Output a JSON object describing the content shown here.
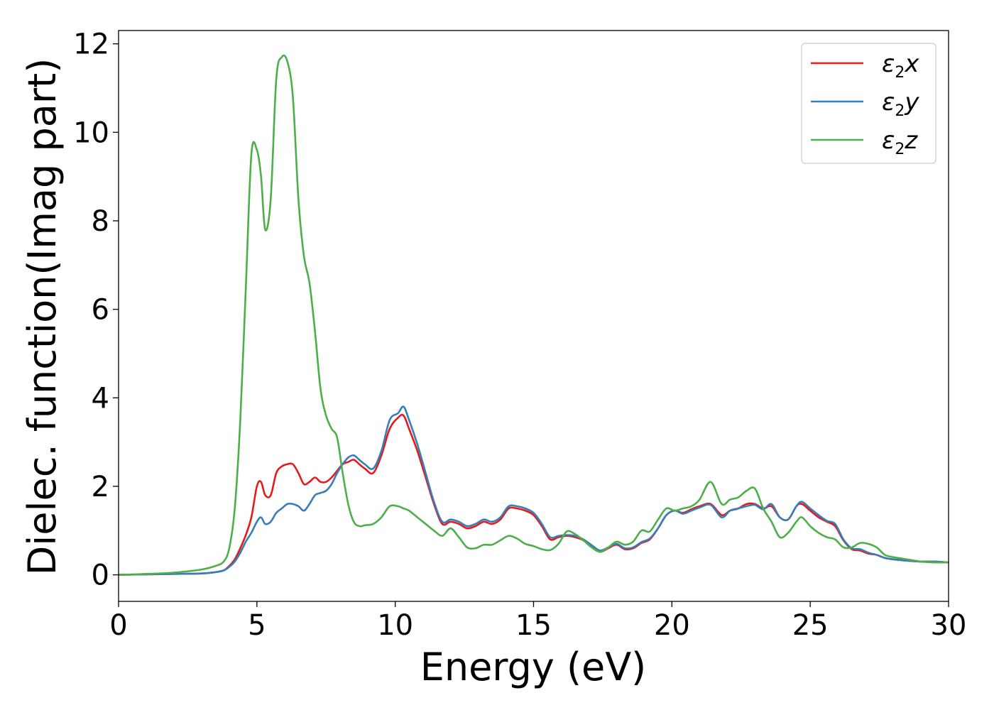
{
  "chart_data": {
    "type": "line",
    "xlabel": "Energy (eV)",
    "ylabel": "Dielec. function(Imag part)",
    "xlim": [
      0,
      30
    ],
    "ylim": [
      -0.6,
      12.3
    ],
    "xticks": [
      0,
      5,
      10,
      15,
      20,
      25,
      30
    ],
    "yticks": [
      0,
      2,
      4,
      6,
      8,
      10,
      12
    ],
    "grid": false,
    "legend_position": "top-right",
    "x": [
      0,
      1,
      2,
      3,
      3.5,
      3.8,
      4.0,
      4.2,
      4.4,
      4.6,
      4.8,
      5.0,
      5.15,
      5.3,
      5.5,
      5.7,
      5.9,
      6.1,
      6.3,
      6.5,
      6.7,
      6.9,
      7.1,
      7.3,
      7.5,
      7.7,
      7.9,
      8.1,
      8.3,
      8.5,
      8.7,
      8.9,
      9.2,
      9.5,
      9.8,
      10.1,
      10.3,
      10.5,
      10.8,
      11.1,
      11.4,
      11.7,
      12.0,
      12.3,
      12.6,
      12.9,
      13.2,
      13.5,
      13.8,
      14.1,
      14.4,
      14.7,
      15.0,
      15.3,
      15.6,
      15.9,
      16.2,
      16.5,
      16.8,
      17.1,
      17.4,
      17.7,
      18.0,
      18.3,
      18.6,
      18.9,
      19.2,
      19.5,
      19.8,
      20.1,
      20.4,
      20.7,
      21.0,
      21.4,
      21.8,
      22.1,
      22.4,
      22.7,
      23.0,
      23.3,
      23.6,
      23.9,
      24.2,
      24.5,
      24.7,
      25.0,
      25.3,
      25.6,
      25.9,
      26.2,
      26.5,
      26.8,
      27.1,
      27.4,
      27.7,
      28.0,
      28.5,
      29.0,
      29.5,
      30.0
    ],
    "series": [
      {
        "name": "ε2x",
        "sub": "2",
        "var": "x",
        "color": "#e41a1c",
        "values": [
          0,
          0.01,
          0.02,
          0.03,
          0.06,
          0.1,
          0.2,
          0.35,
          0.6,
          0.9,
          1.3,
          2.0,
          2.1,
          1.8,
          1.8,
          2.3,
          2.45,
          2.5,
          2.5,
          2.3,
          2.05,
          2.1,
          2.2,
          2.1,
          2.1,
          2.2,
          2.35,
          2.5,
          2.55,
          2.6,
          2.5,
          2.4,
          2.3,
          2.7,
          3.3,
          3.55,
          3.6,
          3.3,
          2.8,
          2.2,
          1.6,
          1.15,
          1.2,
          1.15,
          1.05,
          1.1,
          1.2,
          1.15,
          1.25,
          1.5,
          1.5,
          1.45,
          1.35,
          1.1,
          0.8,
          0.85,
          0.88,
          0.85,
          0.78,
          0.65,
          0.52,
          0.6,
          0.68,
          0.58,
          0.6,
          0.72,
          0.8,
          1.05,
          1.35,
          1.45,
          1.4,
          1.48,
          1.55,
          1.6,
          1.35,
          1.45,
          1.5,
          1.6,
          1.6,
          1.5,
          1.55,
          1.3,
          1.25,
          1.55,
          1.6,
          1.45,
          1.3,
          1.2,
          1.1,
          0.78,
          0.58,
          0.55,
          0.48,
          0.45,
          0.38,
          0.35,
          0.32,
          0.3,
          0.3,
          0.28
        ]
      },
      {
        "name": "ε2y",
        "sub": "2",
        "var": "y",
        "color": "#377eb8",
        "values": [
          0,
          0.01,
          0.02,
          0.03,
          0.06,
          0.1,
          0.18,
          0.3,
          0.5,
          0.75,
          0.95,
          1.2,
          1.3,
          1.15,
          1.2,
          1.4,
          1.5,
          1.6,
          1.6,
          1.55,
          1.45,
          1.6,
          1.8,
          1.85,
          1.9,
          2.05,
          2.3,
          2.5,
          2.65,
          2.7,
          2.6,
          2.5,
          2.4,
          2.8,
          3.5,
          3.65,
          3.8,
          3.5,
          2.95,
          2.3,
          1.65,
          1.2,
          1.25,
          1.2,
          1.1,
          1.15,
          1.25,
          1.2,
          1.3,
          1.55,
          1.55,
          1.5,
          1.4,
          1.15,
          0.85,
          0.88,
          0.9,
          0.88,
          0.8,
          0.67,
          0.55,
          0.62,
          0.7,
          0.6,
          0.62,
          0.74,
          0.82,
          1.05,
          1.35,
          1.45,
          1.38,
          1.45,
          1.52,
          1.58,
          1.3,
          1.45,
          1.5,
          1.55,
          1.58,
          1.48,
          1.6,
          1.3,
          1.25,
          1.55,
          1.65,
          1.5,
          1.35,
          1.22,
          1.15,
          0.8,
          0.6,
          0.58,
          0.5,
          0.45,
          0.38,
          0.35,
          0.32,
          0.3,
          0.3,
          0.28
        ]
      },
      {
        "name": "ε2z",
        "sub": "2",
        "var": "z",
        "color": "#4daf4a",
        "values": [
          0,
          0.02,
          0.05,
          0.12,
          0.2,
          0.3,
          0.6,
          1.5,
          3.5,
          6.5,
          9.5,
          9.6,
          9.0,
          7.8,
          8.5,
          11.2,
          11.7,
          11.6,
          10.8,
          8.5,
          7.2,
          6.6,
          5.5,
          4.2,
          3.6,
          3.3,
          3.1,
          2.3,
          1.6,
          1.2,
          1.1,
          1.12,
          1.15,
          1.3,
          1.55,
          1.55,
          1.5,
          1.45,
          1.3,
          1.15,
          1.0,
          0.88,
          1.05,
          0.85,
          0.62,
          0.6,
          0.68,
          0.68,
          0.78,
          0.88,
          0.82,
          0.7,
          0.65,
          0.58,
          0.56,
          0.7,
          0.98,
          0.92,
          0.78,
          0.62,
          0.52,
          0.62,
          0.75,
          0.68,
          0.75,
          1.0,
          0.98,
          1.25,
          1.5,
          1.45,
          1.5,
          1.55,
          1.7,
          2.1,
          1.6,
          1.7,
          1.75,
          1.9,
          1.95,
          1.5,
          1.2,
          0.85,
          0.95,
          1.2,
          1.3,
          1.1,
          0.95,
          0.85,
          0.8,
          0.62,
          0.62,
          0.72,
          0.7,
          0.62,
          0.45,
          0.4,
          0.35,
          0.3,
          0.28,
          0.28
        ]
      }
    ]
  }
}
